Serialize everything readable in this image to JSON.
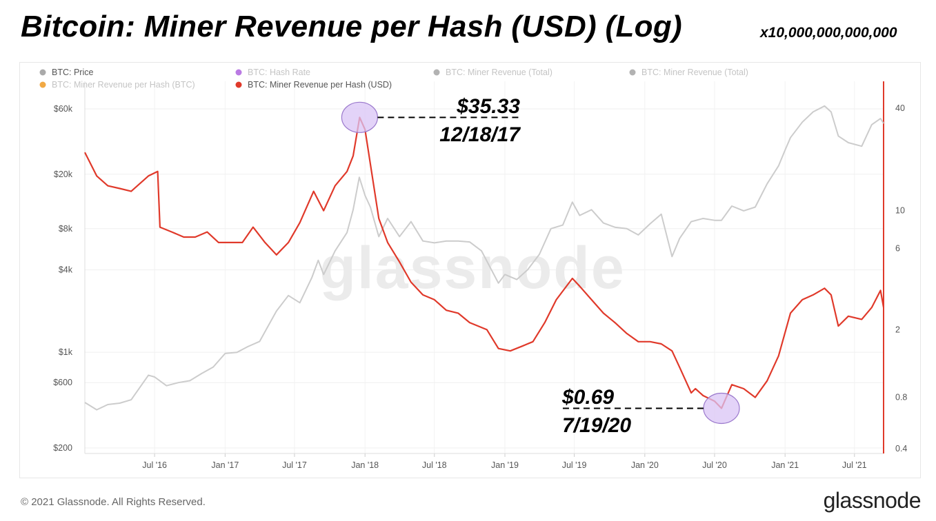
{
  "title": "Bitcoin: Miner Revenue per Hash (USD) (Log)",
  "scale_note": "x10,000,000,000,000",
  "footer": {
    "copyright": "© 2021 Glassnode. All Rights Reserved.",
    "logo": "glassnode"
  },
  "watermark": "glassnode",
  "colors": {
    "price": "#cccccc",
    "revenue_per_hash_usd": "#e0392a",
    "highlight_fill": "#d9c4f5",
    "highlight_stroke": "#9a78cc",
    "axis_right": "#e0392a"
  },
  "legend": [
    {
      "label": "BTC: Price",
      "color": "#aaaaaa",
      "active": true
    },
    {
      "label": "BTC: Hash Rate",
      "color": "#b36be0",
      "active": false
    },
    {
      "label": "BTC: Miner Revenue (Total)",
      "color": "#aaaaaa",
      "active": false
    },
    {
      "label": "BTC: Miner Revenue (Total)",
      "color": "#aaaaaa",
      "active": false
    },
    {
      "label": "BTC: Miner Revenue per Hash (BTC)",
      "color": "#f0a030",
      "active": false
    },
    {
      "label": "BTC: Miner Revenue per Hash (USD)",
      "color": "#e0392a",
      "active": true
    }
  ],
  "annotations": [
    {
      "value": "$35.33",
      "date": "12/18/17"
    },
    {
      "value": "$0.69",
      "date": "7/19/20"
    }
  ],
  "chart_data": {
    "type": "line",
    "x_ticks": [
      "Jul '16",
      "Jan '17",
      "Jul '17",
      "Jan '18",
      "Jul '18",
      "Jan '19",
      "Jul '19",
      "Jan '20",
      "Jul '20",
      "Jan '21",
      "Jul '21"
    ],
    "x_tick_dates": [
      "2016-07-01",
      "2017-01-01",
      "2017-07-01",
      "2018-01-01",
      "2018-07-01",
      "2019-01-01",
      "2019-07-01",
      "2020-01-01",
      "2020-07-01",
      "2021-01-01",
      "2021-07-01"
    ],
    "x_range": [
      "2016-01-01",
      "2021-09-15"
    ],
    "y_left": {
      "label": "BTC: Price",
      "scale": "log",
      "ticks": [
        60000,
        20000,
        8000,
        4000,
        1000,
        600,
        200
      ],
      "tick_labels": [
        "$60k",
        "$20k",
        "$8k",
        "$4k",
        "$1k",
        "$600",
        "$200"
      ],
      "range": [
        200,
        60000
      ]
    },
    "y_right": {
      "label": "BTC: Miner Revenue per Hash (USD)",
      "scale": "log",
      "ticks": [
        40,
        10,
        6,
        2,
        0.8,
        0.4
      ],
      "tick_labels": [
        "40",
        "10",
        "6",
        "2",
        "0.8",
        "0.4"
      ],
      "range": [
        0.4,
        45
      ]
    },
    "grid": true,
    "series": [
      {
        "name": "BTC: Price",
        "axis": "left",
        "x": [
          "2016-01-01",
          "2016-02-01",
          "2016-03-01",
          "2016-04-01",
          "2016-05-01",
          "2016-06-15",
          "2016-07-01",
          "2016-08-01",
          "2016-09-01",
          "2016-10-01",
          "2016-11-01",
          "2016-12-01",
          "2017-01-01",
          "2017-02-01",
          "2017-03-01",
          "2017-04-01",
          "2017-05-15",
          "2017-06-15",
          "2017-07-15",
          "2017-08-15",
          "2017-09-01",
          "2017-09-15",
          "2017-10-15",
          "2017-11-15",
          "2017-12-01",
          "2017-12-17",
          "2018-01-01",
          "2018-01-15",
          "2018-02-06",
          "2018-03-01",
          "2018-04-01",
          "2018-05-01",
          "2018-06-01",
          "2018-07-01",
          "2018-08-01",
          "2018-09-01",
          "2018-10-01",
          "2018-11-01",
          "2018-12-15",
          "2019-01-01",
          "2019-02-01",
          "2019-03-01",
          "2019-04-01",
          "2019-05-01",
          "2019-06-01",
          "2019-06-26",
          "2019-07-15",
          "2019-08-15",
          "2019-09-15",
          "2019-10-15",
          "2019-11-15",
          "2019-12-15",
          "2020-01-15",
          "2020-02-13",
          "2020-03-12",
          "2020-04-01",
          "2020-05-01",
          "2020-06-01",
          "2020-07-01",
          "2020-07-19",
          "2020-08-15",
          "2020-09-15",
          "2020-10-15",
          "2020-11-15",
          "2020-12-15",
          "2021-01-01",
          "2021-01-15",
          "2021-02-15",
          "2021-03-15",
          "2021-04-14",
          "2021-05-01",
          "2021-05-20",
          "2021-06-15",
          "2021-07-20",
          "2021-08-15",
          "2021-09-07",
          "2021-09-15"
        ],
        "values": [
          430,
          380,
          415,
          425,
          450,
          680,
          660,
          570,
          600,
          620,
          700,
          780,
          980,
          1000,
          1100,
          1200,
          2000,
          2600,
          2300,
          3500,
          4700,
          3700,
          5500,
          7500,
          11000,
          19000,
          14000,
          11500,
          7000,
          9500,
          7000,
          9000,
          6500,
          6300,
          6500,
          6500,
          6400,
          5500,
          3200,
          3700,
          3400,
          4000,
          5200,
          8000,
          8500,
          12500,
          10000,
          11000,
          8800,
          8200,
          8000,
          7200,
          8700,
          10200,
          5000,
          6800,
          9000,
          9500,
          9200,
          9200,
          11700,
          10800,
          11500,
          17000,
          23000,
          30000,
          37000,
          48000,
          57000,
          63000,
          57000,
          38000,
          34000,
          32000,
          46000,
          51000,
          47000
        ]
      },
      {
        "name": "BTC: Miner Revenue per Hash (USD)",
        "axis": "right",
        "x": [
          "2016-01-01",
          "2016-02-01",
          "2016-03-01",
          "2016-04-01",
          "2016-05-01",
          "2016-06-15",
          "2016-07-09",
          "2016-07-15",
          "2016-08-15",
          "2016-09-15",
          "2016-10-15",
          "2016-11-15",
          "2016-12-15",
          "2017-01-05",
          "2017-02-15",
          "2017-03-15",
          "2017-04-15",
          "2017-05-15",
          "2017-06-15",
          "2017-07-15",
          "2017-08-20",
          "2017-09-15",
          "2017-10-15",
          "2017-11-15",
          "2017-12-01",
          "2017-12-18",
          "2018-01-01",
          "2018-02-06",
          "2018-03-01",
          "2018-04-01",
          "2018-05-01",
          "2018-06-01",
          "2018-07-01",
          "2018-08-01",
          "2018-09-01",
          "2018-10-01",
          "2018-11-15",
          "2018-12-15",
          "2019-01-15",
          "2019-02-15",
          "2019-03-15",
          "2019-04-15",
          "2019-05-15",
          "2019-06-26",
          "2019-07-15",
          "2019-08-15",
          "2019-09-15",
          "2019-10-15",
          "2019-11-15",
          "2019-12-15",
          "2020-01-15",
          "2020-02-13",
          "2020-03-12",
          "2020-04-01",
          "2020-05-01",
          "2020-05-12",
          "2020-06-01",
          "2020-07-01",
          "2020-07-19",
          "2020-08-15",
          "2020-09-15",
          "2020-10-15",
          "2020-11-15",
          "2020-12-15",
          "2021-01-15",
          "2021-02-15",
          "2021-03-15",
          "2021-04-14",
          "2021-05-01",
          "2021-05-20",
          "2021-06-15",
          "2021-07-20",
          "2021-08-15",
          "2021-09-07",
          "2021-09-15"
        ],
        "values": [
          22,
          16,
          14,
          13.5,
          13,
          16,
          17,
          8,
          7.5,
          7,
          7,
          7.5,
          6.5,
          6.5,
          6.5,
          8,
          6.5,
          5.5,
          6.5,
          8.5,
          13,
          10,
          14,
          17,
          21,
          35.33,
          30,
          9,
          6.5,
          5,
          3.8,
          3.2,
          3,
          2.6,
          2.5,
          2.2,
          2.0,
          1.55,
          1.5,
          1.6,
          1.7,
          2.2,
          3.0,
          4.0,
          3.6,
          3.0,
          2.5,
          2.2,
          1.9,
          1.7,
          1.7,
          1.65,
          1.5,
          1.2,
          0.85,
          0.9,
          0.82,
          0.76,
          0.69,
          0.95,
          0.9,
          0.8,
          1.0,
          1.4,
          2.5,
          3.0,
          3.2,
          3.5,
          3.2,
          2.1,
          2.4,
          2.3,
          2.7,
          3.4,
          2.7
        ]
      }
    ]
  }
}
